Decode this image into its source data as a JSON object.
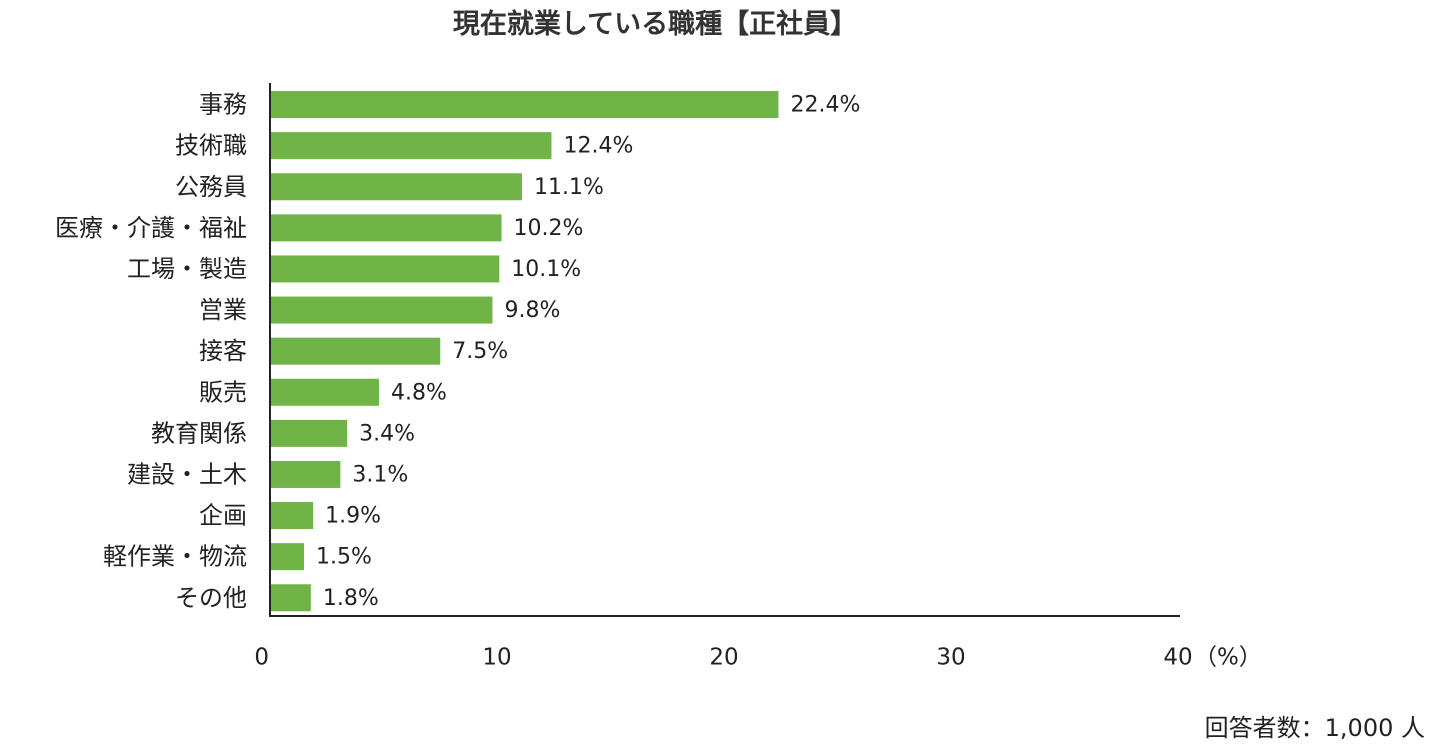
{
  "chart_data": {
    "type": "bar",
    "orientation": "horizontal",
    "title": "現在就業している職種【正社員】",
    "categories": [
      "事務",
      "技術職",
      "公務員",
      "医療・介護・福祉",
      "工場・製造",
      "営業",
      "接客",
      "販売",
      "教育関係",
      "建設・土木",
      "企画",
      "軽作業・物流",
      "その他"
    ],
    "values": [
      22.4,
      12.4,
      11.1,
      10.2,
      10.1,
      9.8,
      7.5,
      4.8,
      3.4,
      3.1,
      1.9,
      1.5,
      1.8
    ],
    "value_labels": [
      "22.4%",
      "12.4%",
      "11.1%",
      "10.2%",
      "10.1%",
      "9.8%",
      "7.5%",
      "4.8%",
      "3.4%",
      "3.1%",
      "1.9%",
      "1.5%",
      "1.8%"
    ],
    "xlim": [
      0,
      40
    ],
    "xticks": [
      "0",
      "10",
      "20",
      "30",
      "40"
    ],
    "x_unit": "（%）",
    "bar_color": "#70b347",
    "grid": false,
    "legend": "none",
    "note": "回答者数：1,000 人"
  }
}
